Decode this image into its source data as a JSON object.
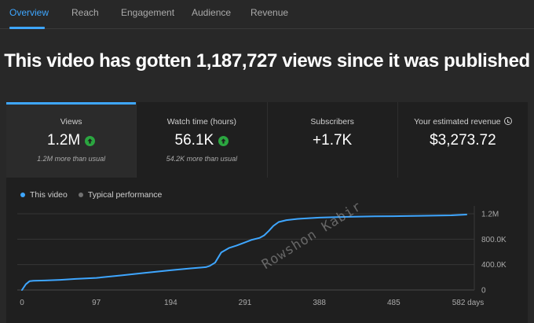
{
  "tabs": [
    {
      "label": "Overview",
      "active": true
    },
    {
      "label": "Reach",
      "active": false
    },
    {
      "label": "Engagement",
      "active": false
    },
    {
      "label": "Audience",
      "active": false
    },
    {
      "label": "Revenue",
      "active": false
    }
  ],
  "headline": "This video has gotten 1,187,727 views since it was published",
  "metrics": [
    {
      "label": "Views",
      "value": "1.2M",
      "trend_icon": "arrow-up-circle-icon",
      "sub": "1.2M more than usual",
      "selected": true
    },
    {
      "label": "Watch time (hours)",
      "value": "56.1K",
      "trend_icon": "arrow-up-circle-icon",
      "sub": "54.2K more than usual",
      "selected": false
    },
    {
      "label": "Subscribers",
      "value": "+1.7K",
      "sub": "",
      "selected": false
    },
    {
      "label": "Your estimated revenue",
      "value": "$3,273.72",
      "info_icon": "info-icon",
      "sub": "",
      "selected": false
    }
  ],
  "legend": {
    "this_video": "This video",
    "typical": "Typical performance"
  },
  "colors": {
    "accent": "#3ea6ff",
    "positive": "#2ba640",
    "background": "#282828",
    "panel": "#1f1f1f"
  },
  "watermark": "Rowshon Kabir",
  "chart_data": {
    "type": "line",
    "x_tick_labels": [
      "0",
      "97",
      "194",
      "291",
      "388",
      "485",
      "582 days"
    ],
    "x_ticks": [
      0,
      97,
      194,
      291,
      388,
      485,
      582
    ],
    "y_tick_labels": [
      "0",
      "400.0K",
      "800.0K",
      "1.2M"
    ],
    "y_ticks": [
      0,
      400000,
      800000,
      1200000
    ],
    "xlim": [
      0,
      582
    ],
    "ylim": [
      0,
      1200000
    ],
    "grid": true,
    "legend_position": "top-left",
    "series": [
      {
        "name": "This video",
        "color": "#3ea6ff",
        "x": [
          0,
          5,
          10,
          15,
          30,
          50,
          70,
          97,
          130,
          160,
          194,
          220,
          240,
          245,
          252,
          260,
          270,
          280,
          291,
          300,
          310,
          316,
          322,
          328,
          335,
          345,
          360,
          388,
          420,
          460,
          485,
          520,
          560,
          580
        ],
        "y": [
          0,
          90000,
          140000,
          145000,
          150000,
          160000,
          175000,
          190000,
          230000,
          270000,
          310000,
          340000,
          360000,
          380000,
          430000,
          590000,
          660000,
          700000,
          750000,
          790000,
          820000,
          860000,
          930000,
          1010000,
          1070000,
          1100000,
          1120000,
          1140000,
          1150000,
          1160000,
          1162000,
          1168000,
          1175000,
          1187727
        ]
      }
    ]
  }
}
